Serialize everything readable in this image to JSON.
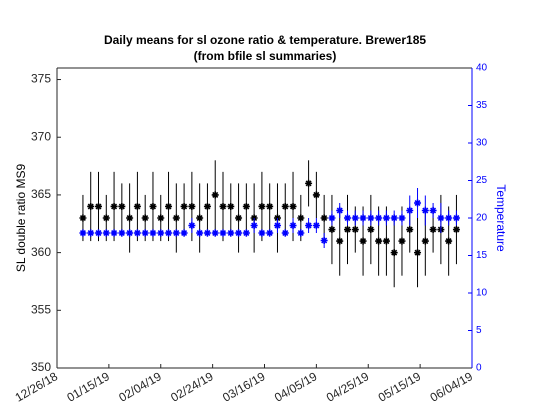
{
  "chart_data": {
    "type": "errorbar",
    "title": "Daily means for sl ozone ratio & temperature. Brewer185",
    "subtitle": "(from bfile sl summaries)",
    "ylabel": "SL double ratio MS9",
    "y2label": "Temperature",
    "x": [
      "01/05/19",
      "01/08/19",
      "01/11/19",
      "01/14/19",
      "01/17/19",
      "01/20/19",
      "01/23/19",
      "01/26/19",
      "01/29/19",
      "02/01/19",
      "02/04/19",
      "02/07/19",
      "02/10/19",
      "02/13/19",
      "02/16/19",
      "02/19/19",
      "02/22/19",
      "02/25/19",
      "02/28/19",
      "03/03/19",
      "03/06/19",
      "03/09/19",
      "03/12/19",
      "03/15/19",
      "03/18/19",
      "03/21/19",
      "03/24/19",
      "03/27/19",
      "03/30/19",
      "04/02/19",
      "04/05/19",
      "04/08/19",
      "04/11/19",
      "04/14/19",
      "04/17/19",
      "04/20/19",
      "04/23/19",
      "04/26/19",
      "04/29/19",
      "05/02/19",
      "05/05/19",
      "05/08/19",
      "05/11/19",
      "05/14/19",
      "05/17/19",
      "05/20/19",
      "05/23/19",
      "05/26/19",
      "05/29/19"
    ],
    "series": [
      {
        "color": "#000000",
        "axis": "y",
        "values": [
          363,
          364,
          364,
          363,
          364,
          364,
          363,
          364,
          363,
          364,
          363,
          364,
          363,
          364,
          364,
          363,
          364,
          365,
          364,
          364,
          363,
          364,
          363,
          364,
          364,
          363,
          364,
          364,
          363,
          366,
          365,
          363,
          362,
          361,
          362,
          362,
          361,
          362,
          361,
          361,
          360,
          361,
          362,
          360,
          361,
          362,
          362,
          361,
          362
        ],
        "errors": [
          2,
          3,
          3,
          2,
          3,
          2,
          3,
          3,
          2,
          3,
          2,
          3,
          3,
          2,
          3,
          3,
          2,
          3,
          3,
          2,
          3,
          2,
          3,
          3,
          2,
          3,
          2,
          3,
          2,
          2,
          2,
          2,
          3,
          3,
          3,
          2,
          3,
          3,
          3,
          3,
          3,
          3,
          2,
          3,
          3,
          2,
          3,
          3,
          3
        ]
      },
      {
        "color": "#0000ff",
        "axis": "y2",
        "values": [
          18,
          18,
          18,
          18,
          18,
          18,
          18,
          18,
          18,
          18,
          18,
          18,
          18,
          18,
          19,
          18,
          18,
          18,
          18,
          18,
          18,
          18,
          19,
          18,
          18,
          19,
          18,
          19,
          18,
          19,
          19,
          17,
          20,
          21,
          20,
          20,
          20,
          20,
          20,
          20,
          20,
          20,
          21,
          22,
          21,
          21,
          20,
          20,
          20
        ],
        "errors": [
          0.5,
          0.5,
          0.5,
          0.5,
          0.5,
          0.5,
          0.5,
          0.5,
          0.5,
          0.5,
          0.5,
          0.5,
          0.5,
          0.5,
          1,
          0.5,
          0.5,
          0.5,
          0.5,
          0.5,
          0.5,
          0.5,
          1,
          0.5,
          0.5,
          1,
          0.5,
          1,
          0.5,
          1,
          1,
          1,
          1,
          1,
          1,
          1,
          1,
          1,
          1,
          1,
          1,
          1,
          2,
          2,
          2,
          1,
          2,
          1,
          1
        ]
      }
    ],
    "xlim": [
      "12/26/18",
      "06/04/19"
    ],
    "xticks": [
      "12/26/18",
      "01/15/19",
      "02/04/19",
      "02/24/19",
      "03/16/19",
      "04/05/19",
      "04/25/19",
      "05/15/19",
      "06/04/19"
    ],
    "ylim": [
      350,
      376
    ],
    "yticks": [
      350,
      355,
      360,
      365,
      370,
      375
    ],
    "y2lim": [
      0,
      40
    ],
    "y2ticks": [
      0,
      5,
      10,
      15,
      20,
      25,
      30,
      35,
      40
    ],
    "y2color": "#0000ff"
  }
}
